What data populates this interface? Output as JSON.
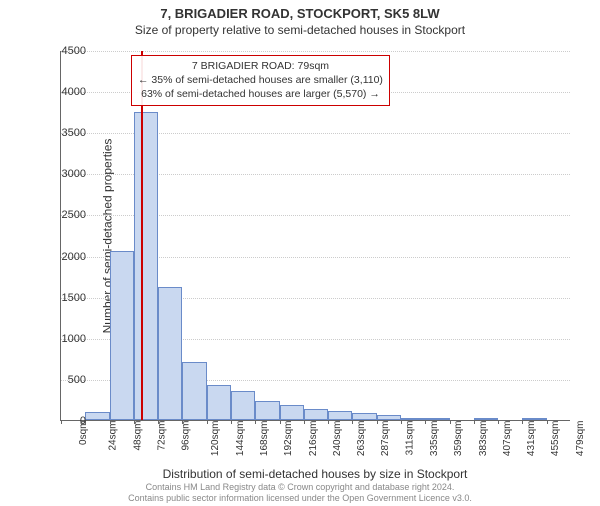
{
  "titles": {
    "line1": "7, BRIGADIER ROAD, STOCKPORT, SK5 8LW",
    "line2": "Size of property relative to semi-detached houses in Stockport"
  },
  "axes": {
    "ylabel": "Number of semi-detached properties",
    "xlabel": "Distribution of semi-detached houses by size in Stockport",
    "ylim": [
      0,
      4500
    ],
    "ytick_step": 500,
    "ytick_fontsize": 11,
    "label_fontsize": 12,
    "grid_color": "#cccccc",
    "axis_color": "#666666"
  },
  "chart": {
    "type": "histogram",
    "bar_fill": "#c9d8f0",
    "bar_border": "#6a8bc9",
    "background_color": "#ffffff",
    "bar_width_ratio": 1.0,
    "x_tick_labels": [
      "0sqm",
      "24sqm",
      "48sqm",
      "72sqm",
      "96sqm",
      "120sqm",
      "144sqm",
      "168sqm",
      "192sqm",
      "216sqm",
      "240sqm",
      "263sqm",
      "287sqm",
      "311sqm",
      "335sqm",
      "359sqm",
      "383sqm",
      "407sqm",
      "431sqm",
      "455sqm",
      "479sqm"
    ],
    "values": [
      0,
      100,
      2060,
      3750,
      1620,
      700,
      420,
      350,
      230,
      180,
      130,
      110,
      80,
      60,
      30,
      20,
      0,
      10,
      0,
      10,
      0
    ]
  },
  "marker": {
    "color": "#cc0000",
    "position_bin_index": 3.3,
    "box": {
      "line1": "7 BRIGADIER ROAD: 79sqm",
      "line2": "← 35% of semi-detached houses are smaller (3,110)",
      "line3": "63% of semi-detached houses are larger (5,570) →"
    }
  },
  "footer": {
    "line1": "Contains HM Land Registry data © Crown copyright and database right 2024.",
    "line2": "Contains public sector information licensed under the Open Government Licence v3.0."
  }
}
